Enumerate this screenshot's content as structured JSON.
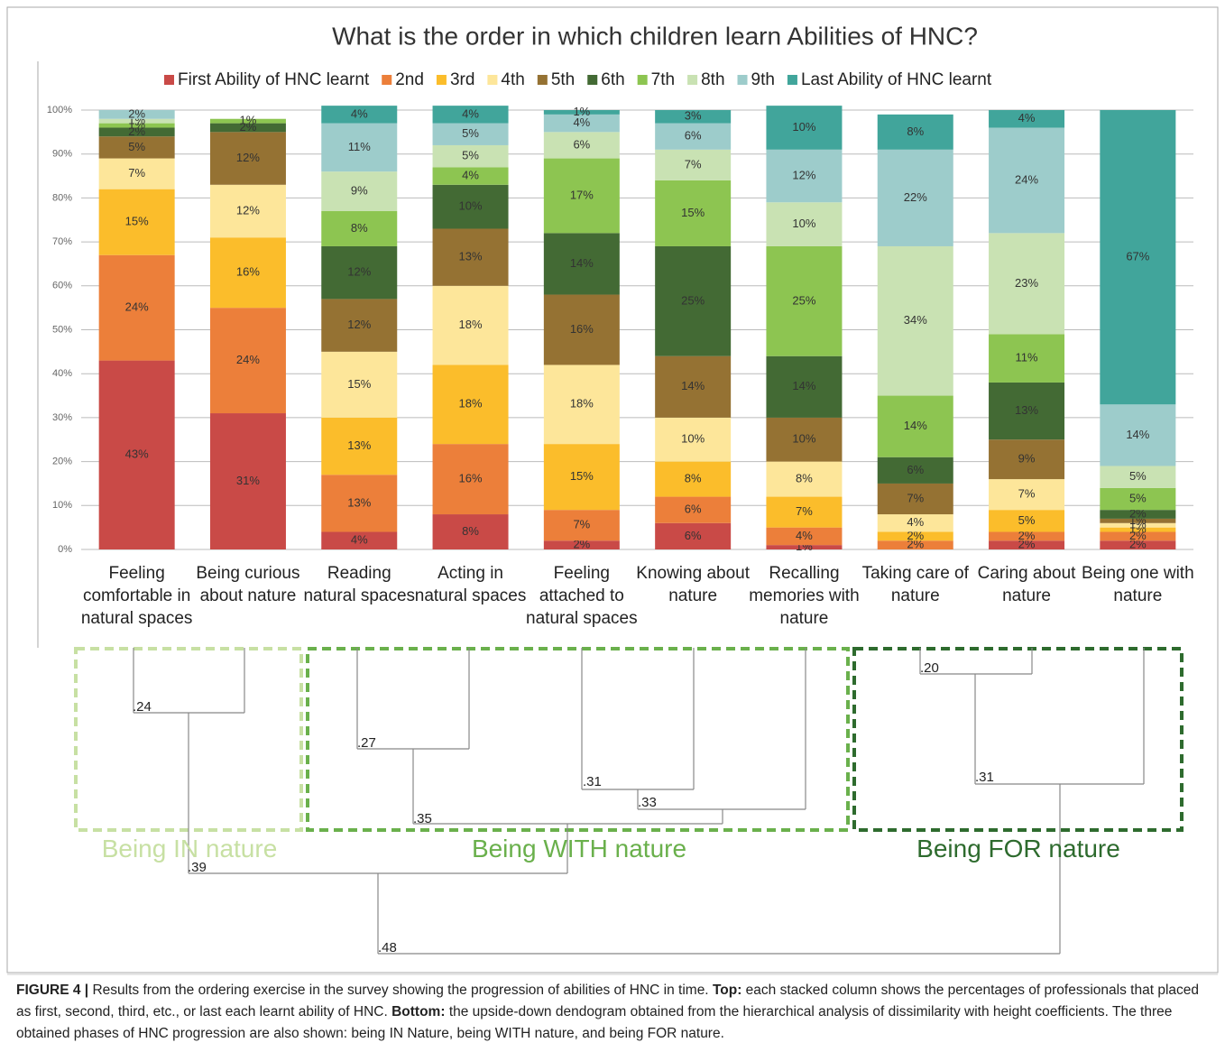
{
  "chart_data": {
    "type": "stacked_bar",
    "title": "What is the order in which children learn Abilities of HNC?",
    "categories": [
      "Feeling comfortable in natural spaces",
      "Being curious about nature",
      "Reading natural spaces",
      "Acting in natural spaces",
      "Feeling attached to natural spaces",
      "Knowing about nature",
      "Recalling memories with nature",
      "Taking care of nature",
      "Caring about nature",
      "Being one with nature"
    ],
    "ylim": [
      0,
      100
    ],
    "yticks": [
      {
        "value": 0,
        "label": "0%"
      },
      {
        "value": 10,
        "label": "10%"
      },
      {
        "value": 20,
        "label": "20%"
      },
      {
        "value": 30,
        "label": "30%"
      },
      {
        "value": 40,
        "label": "40%"
      },
      {
        "value": 50,
        "label": "50%"
      },
      {
        "value": 60,
        "label": "60%"
      },
      {
        "value": 70,
        "label": "70%"
      },
      {
        "value": 80,
        "label": "80%"
      },
      {
        "value": 90,
        "label": "90%"
      },
      {
        "value": 100,
        "label": "100%"
      }
    ],
    "grid": true,
    "legend": "top",
    "series": [
      {
        "name": "First Ability of HNC learnt",
        "color": "#c94a47",
        "values": [
          43,
          31,
          4,
          8,
          2,
          6,
          1,
          0,
          2,
          2
        ],
        "value_labels": [
          "43%",
          "31%",
          "4%",
          "8%",
          "2%",
          "6%",
          "1%",
          null,
          "2%",
          "2%"
        ]
      },
      {
        "name": "2nd",
        "color": "#ec7f3a",
        "values": [
          24,
          24,
          13,
          16,
          7,
          6,
          4,
          2,
          2,
          2
        ],
        "value_labels": [
          "24%",
          "24%",
          "13%",
          "16%",
          "7%",
          "6%",
          "4%",
          "2%",
          "2%",
          "2%"
        ]
      },
      {
        "name": "3rd",
        "color": "#fbbd2b",
        "values": [
          15,
          16,
          13,
          18,
          15,
          8,
          7,
          2,
          5,
          1
        ],
        "value_labels": [
          "15%",
          "16%",
          "13%",
          "18%",
          "15%",
          "8%",
          "7%",
          "2%",
          "5%",
          "1%"
        ]
      },
      {
        "name": "4th",
        "color": "#fde69a",
        "values": [
          7,
          12,
          15,
          18,
          18,
          10,
          8,
          4,
          7,
          1
        ],
        "value_labels": [
          "7%",
          "12%",
          "15%",
          "18%",
          "18%",
          "10%",
          "8%",
          "4%",
          "7%",
          "1%"
        ]
      },
      {
        "name": "5th",
        "color": "#957233",
        "values": [
          5,
          12,
          12,
          13,
          16,
          14,
          10,
          7,
          9,
          1
        ],
        "value_labels": [
          "5%",
          "12%",
          "12%",
          "13%",
          "16%",
          "14%",
          "10%",
          "7%",
          "9%",
          "1%"
        ]
      },
      {
        "name": "6th",
        "color": "#436a34",
        "values": [
          2,
          2,
          12,
          10,
          14,
          25,
          14,
          6,
          13,
          2
        ],
        "value_labels": [
          "2%",
          "2%",
          "12%",
          "10%",
          "14%",
          "25%",
          "14%",
          "6%",
          "13%",
          "2%"
        ]
      },
      {
        "name": "7th",
        "color": "#8dc551",
        "values": [
          1,
          1,
          8,
          4,
          17,
          15,
          25,
          14,
          11,
          5
        ],
        "value_labels": [
          "1%",
          "1%",
          "8%",
          "4%",
          "17%",
          "15%",
          "25%",
          "14%",
          "11%",
          "5%"
        ]
      },
      {
        "name": "8th",
        "color": "#c9e2b3",
        "values": [
          1,
          0,
          9,
          5,
          6,
          7,
          10,
          34,
          23,
          5
        ],
        "value_labels": [
          "1%",
          null,
          "9%",
          "5%",
          "6%",
          "7%",
          "10%",
          "34%",
          "23%",
          "5%"
        ]
      },
      {
        "name": "9th",
        "color": "#9dcccb",
        "values": [
          2,
          0,
          11,
          5,
          4,
          6,
          12,
          22,
          24,
          14
        ],
        "value_labels": [
          "2%",
          null,
          "11%",
          "5%",
          "4%",
          "6%",
          "12%",
          "22%",
          "24%",
          "14%"
        ]
      },
      {
        "name": "Last Ability of HNC learnt",
        "color": "#41a59b",
        "values": [
          0,
          0,
          4,
          4,
          1,
          3,
          10,
          8,
          4,
          67
        ],
        "value_labels": [
          null,
          null,
          "4%",
          "4%",
          "1%",
          "3%",
          "10%",
          "8%",
          "4%",
          "67%"
        ]
      }
    ]
  },
  "dendrogram": {
    "heights": [
      ".24",
      ".27",
      ".31",
      ".33",
      ".35",
      ".39",
      ".20",
      ".31",
      ".48"
    ],
    "groups": [
      "Being IN nature",
      "Being WITH nature",
      "Being FOR nature"
    ]
  },
  "caption": [
    "FIGURE 4 |",
    "Results from the ordering exercise in the survey showing the progression of abilities of HNC in time.",
    "Top:",
    "each stacked column shows the percentages of professionals that placed as first, second, third, etc., or last each learnt ability of HNC.",
    "Bottom:",
    "the upside-down dendogram obtained from the hierarchical analysis of dissimilarity with height coefficients. The three obtained phases of HNC progression are also shown: being IN Nature, being WITH nature, and being FOR nature."
  ]
}
